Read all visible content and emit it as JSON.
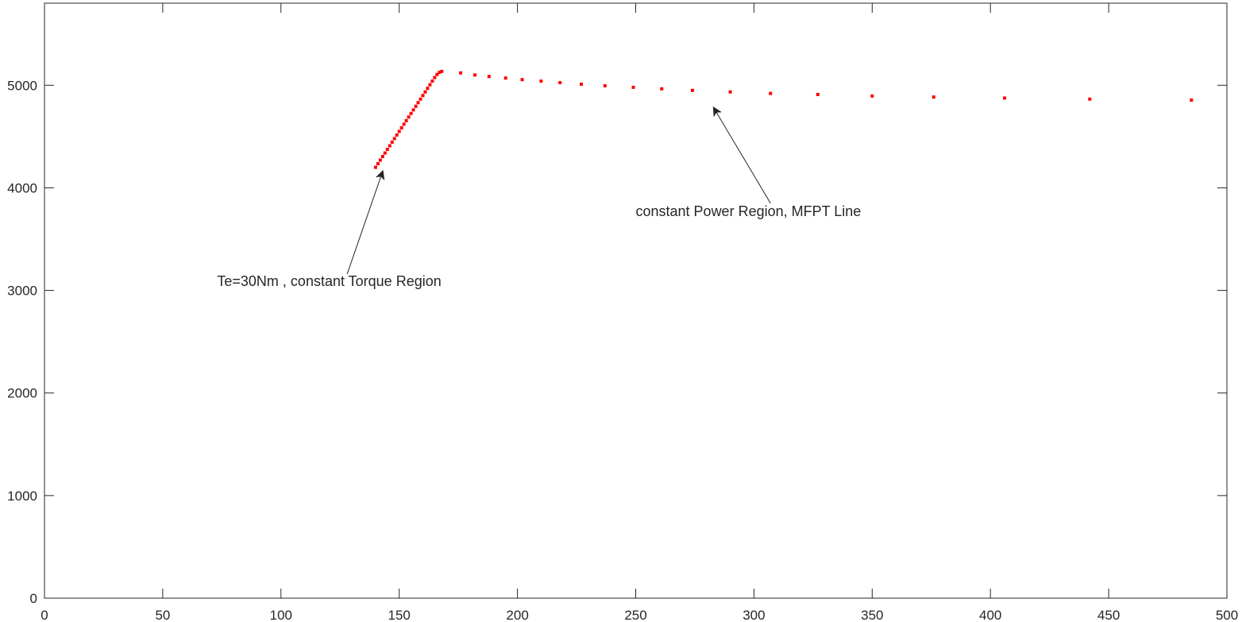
{
  "chart_data": {
    "type": "scatter",
    "title": "",
    "xlabel": "",
    "ylabel": "",
    "xlim": [
      0,
      500
    ],
    "ylim": [
      0,
      5800
    ],
    "xticks": [
      0,
      50,
      100,
      150,
      200,
      250,
      300,
      350,
      400,
      450,
      500
    ],
    "yticks": [
      0,
      1000,
      2000,
      3000,
      4000,
      5000
    ],
    "grid": false,
    "legend": "none",
    "marker_color": "#ff0000",
    "series": [
      {
        "points": [
          [
            140,
            4200
          ],
          [
            141,
            4235
          ],
          [
            142,
            4270
          ],
          [
            143,
            4305
          ],
          [
            144,
            4340
          ],
          [
            145,
            4375
          ],
          [
            146,
            4410
          ],
          [
            147,
            4445
          ],
          [
            148,
            4480
          ],
          [
            149,
            4515
          ],
          [
            150,
            4550
          ],
          [
            151,
            4585
          ],
          [
            152,
            4620
          ],
          [
            153,
            4655
          ],
          [
            154,
            4690
          ],
          [
            155,
            4725
          ],
          [
            156,
            4760
          ],
          [
            157,
            4795
          ],
          [
            158,
            4830
          ],
          [
            159,
            4865
          ],
          [
            160,
            4900
          ],
          [
            161,
            4935
          ],
          [
            162,
            4970
          ],
          [
            163,
            5005
          ],
          [
            164,
            5040
          ],
          [
            165,
            5075
          ],
          [
            166,
            5105
          ],
          [
            167,
            5125
          ],
          [
            168,
            5135
          ],
          [
            176,
            5120
          ],
          [
            182,
            5100
          ],
          [
            188,
            5085
          ],
          [
            195,
            5070
          ],
          [
            202,
            5055
          ],
          [
            210,
            5040
          ],
          [
            218,
            5025
          ],
          [
            227,
            5010
          ],
          [
            237,
            4995
          ],
          [
            249,
            4980
          ],
          [
            261,
            4965
          ],
          [
            274,
            4950
          ],
          [
            290,
            4935
          ],
          [
            307,
            4920
          ],
          [
            327,
            4910
          ],
          [
            350,
            4895
          ],
          [
            376,
            4885
          ],
          [
            406,
            4875
          ],
          [
            442,
            4865
          ],
          [
            485,
            4855
          ]
        ]
      }
    ],
    "annotations": [
      {
        "text": "Te=30Nm , constant Torque Region",
        "text_at": [
          73,
          3045
        ],
        "arrow_tail": [
          128,
          3160
        ],
        "arrow_head": [
          143,
          4160
        ]
      },
      {
        "text": "constant Power Region, MFPT Line",
        "text_at": [
          250,
          3725
        ],
        "arrow_tail": [
          307,
          3850
        ],
        "arrow_head": [
          283,
          4780
        ]
      }
    ]
  }
}
